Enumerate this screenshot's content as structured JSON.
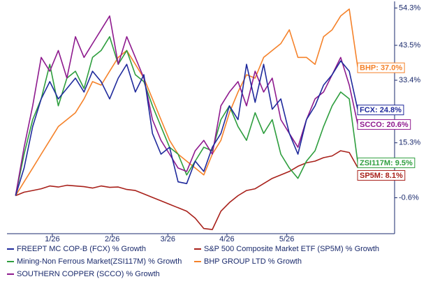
{
  "chart_data": {
    "type": "line",
    "x": [
      0,
      1,
      2,
      3,
      4,
      5,
      6,
      7,
      8,
      9,
      10,
      11,
      12,
      13,
      14,
      15,
      16,
      17,
      18,
      19,
      20,
      21,
      22,
      23,
      24,
      25,
      26,
      27,
      28,
      29,
      30,
      31,
      32,
      33,
      34,
      35,
      36,
      37,
      38,
      39,
      40
    ],
    "xlim": [
      -1,
      44.3
    ],
    "xticks": [
      {
        "value": 4.3,
        "label": "1/26"
      },
      {
        "value": 11.3,
        "label": "2/26"
      },
      {
        "value": 17.8,
        "label": "3/26"
      },
      {
        "value": 24.7,
        "label": "4/26"
      },
      {
        "value": 31.7,
        "label": "5/26"
      }
    ],
    "ylim": [
      -11,
      55
    ],
    "yticks": [
      {
        "value": -0.6,
        "label": "-0.6%"
      },
      {
        "value": 15.3,
        "label": "15.3%"
      },
      {
        "value": 33.4,
        "label": "33.4%"
      },
      {
        "value": 43.5,
        "label": "43.5%"
      },
      {
        "value": 54.3,
        "label": "54.3%"
      }
    ],
    "series": [
      {
        "name": "FREEPT MC COP-B (FCX) % Growth",
        "color": "#1f2a9c",
        "end_label": "FCX: 24.8%",
        "values": [
          0,
          8,
          20,
          28,
          33,
          28,
          31,
          34,
          30,
          36,
          33,
          28,
          34,
          38,
          30,
          35,
          18,
          12,
          14,
          4,
          3.5,
          10,
          7,
          14,
          18,
          26,
          22,
          38,
          27,
          38,
          25,
          28,
          18,
          12,
          22,
          26,
          32,
          35,
          39,
          36,
          24.8
        ]
      },
      {
        "name": "S&P 500 Composite Market ETF (SP5M) % Growth",
        "color": "#a8201a",
        "end_label": "SP5M: 8.1%",
        "values": [
          0,
          1,
          1.5,
          2,
          2.8,
          2.5,
          3,
          2.8,
          2.6,
          2.2,
          2.8,
          2.4,
          2.5,
          1.8,
          1.5,
          0.5,
          -0.5,
          -1.5,
          -2.5,
          -3.5,
          -4.5,
          -6.5,
          -9.5,
          -9.8,
          -4.5,
          -2,
          0,
          1.5,
          2,
          3.5,
          5,
          6,
          7,
          8.5,
          9.5,
          10,
          11,
          11.5,
          13,
          12.5,
          8.1
        ]
      },
      {
        "name": "Mining-Non Ferrous Market(ZSI117M) % Growth",
        "color": "#2e9e3e",
        "end_label": "ZSI117M: 9.5%",
        "values": [
          0,
          12,
          22,
          28,
          38,
          26,
          34,
          36,
          31,
          40,
          42,
          46,
          38,
          42,
          35,
          33,
          26,
          20,
          14,
          12,
          6,
          10,
          14,
          13,
          22,
          26,
          20,
          16,
          24,
          18,
          22,
          12,
          8,
          5,
          10,
          13,
          20,
          26,
          30,
          28,
          9.5
        ]
      },
      {
        "name": "BHP GROUP LTD % Growth",
        "color": "#f5822a",
        "end_label": "BHP: 37.0%",
        "values": [
          0,
          4,
          8,
          12,
          16,
          20,
          22,
          24,
          28,
          33,
          32,
          36,
          40,
          42,
          38,
          34,
          28,
          22,
          16,
          12,
          10,
          8,
          6,
          12,
          16,
          24,
          30,
          35,
          34,
          40,
          42,
          44,
          48,
          40,
          40,
          38,
          46,
          48,
          52,
          54,
          37
        ]
      },
      {
        "name": "SOUTHERN COPPER (SCCO) % Growth",
        "color": "#8e1a8e",
        "end_label": "SCCO: 20.6%",
        "values": [
          0,
          14,
          26,
          40,
          36,
          42,
          34,
          46,
          40,
          44,
          48,
          52,
          38,
          46,
          40,
          34,
          22,
          16,
          12,
          8,
          7,
          13,
          16,
          12,
          26,
          30,
          33,
          26,
          36,
          30,
          34,
          22,
          18,
          14,
          22,
          28,
          30,
          35,
          40,
          32,
          20.6
        ]
      }
    ]
  }
}
